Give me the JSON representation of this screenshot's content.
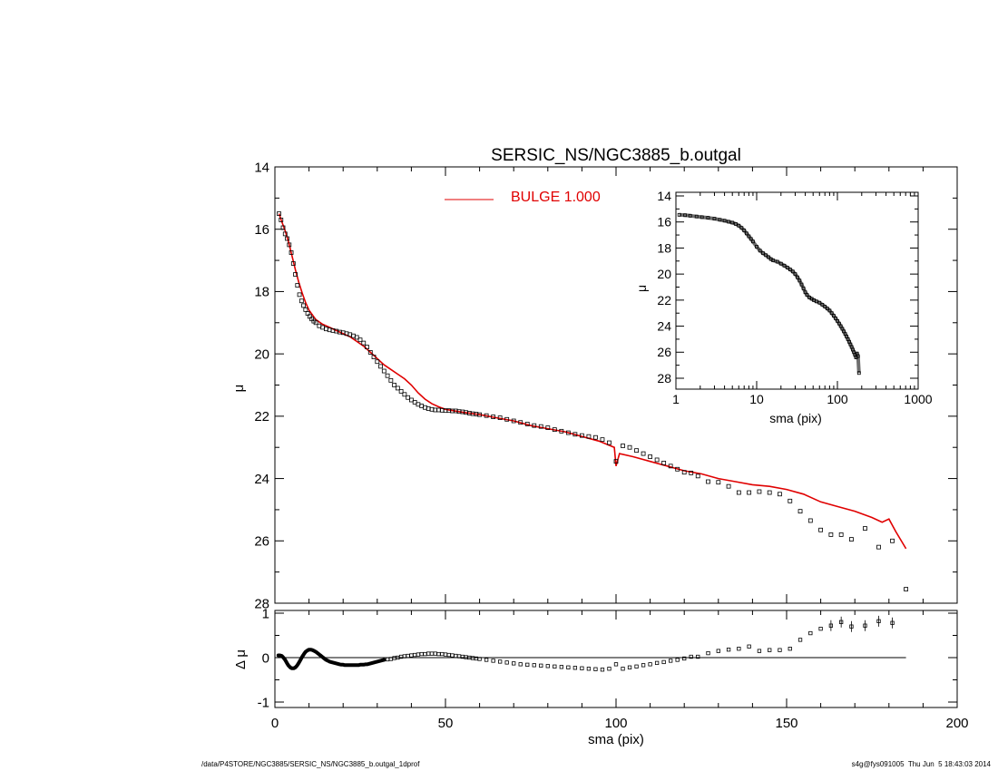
{
  "colors": {
    "model": "#e00000",
    "data": "#000000",
    "axis": "#000000"
  },
  "footer": {
    "path": "/data/P4STORE/NGC3885/SERSIC_NS/NGC3885_b.outgal_1dprof",
    "stamp": "s4g@fys091005  Thu Jun  5 18:43:03 2014"
  },
  "chart_data": [
    {
      "id": "main_profile",
      "type": "scatter",
      "title": "SERSIC_NS/NGC3885_b.outgal",
      "ylabel": "μ",
      "xlim": [
        0,
        200
      ],
      "ylim": [
        28,
        14
      ],
      "y_reversed": true,
      "xticks": [
        0,
        50,
        100,
        150,
        200
      ],
      "yticks": [
        14,
        16,
        18,
        20,
        22,
        24,
        26,
        28
      ],
      "legend": {
        "placement": "top-center",
        "entries": [
          {
            "label": "BULGE  1.000",
            "color": "#e00000"
          }
        ]
      },
      "series": [
        {
          "kind": "model_line",
          "color": "#e00000",
          "x": [
            1.2,
            2,
            3,
            4,
            5,
            6,
            7,
            8,
            9,
            10,
            12,
            14,
            16,
            18,
            20,
            22,
            24,
            26,
            28,
            30,
            32,
            34,
            36,
            38,
            40,
            42,
            44,
            46,
            48,
            50,
            55,
            60,
            65,
            70,
            75,
            80,
            85,
            90,
            95,
            99.5,
            100,
            101,
            105,
            110,
            115,
            120,
            125,
            130,
            135,
            140,
            145,
            150,
            155,
            160,
            165,
            170,
            175,
            178,
            180,
            182,
            185
          ],
          "y": [
            15.5,
            15.75,
            16.05,
            16.4,
            16.85,
            17.3,
            17.7,
            18.05,
            18.35,
            18.6,
            18.9,
            19.05,
            19.15,
            19.25,
            19.35,
            19.45,
            19.6,
            19.75,
            19.95,
            20.15,
            20.35,
            20.5,
            20.65,
            20.8,
            21.0,
            21.25,
            21.45,
            21.6,
            21.7,
            21.78,
            21.87,
            21.95,
            22.05,
            22.15,
            22.3,
            22.4,
            22.5,
            22.65,
            22.8,
            23.0,
            23.6,
            23.2,
            23.3,
            23.45,
            23.6,
            23.75,
            23.85,
            24.0,
            24.1,
            24.2,
            24.25,
            24.35,
            24.5,
            24.75,
            24.9,
            25.05,
            25.25,
            25.4,
            25.3,
            25.7,
            26.25
          ]
        },
        {
          "kind": "data_points",
          "color": "#000000",
          "x": [
            1.2,
            1.8,
            2.4,
            3,
            3.6,
            4.2,
            4.8,
            5.4,
            6,
            6.6,
            7.2,
            7.8,
            8.4,
            9,
            9.6,
            10.2,
            10.8,
            11.4,
            12,
            13,
            14,
            15,
            16,
            17,
            18,
            19,
            20,
            21,
            22,
            23,
            24,
            25,
            26,
            27,
            28,
            29,
            30,
            31,
            32,
            33,
            34,
            35,
            36,
            37,
            38,
            39,
            40,
            41,
            42,
            43,
            44,
            45,
            46,
            47,
            48,
            49,
            50,
            51,
            52,
            53,
            54,
            55,
            56,
            57,
            58,
            59,
            60,
            62,
            64,
            66,
            68,
            70,
            72,
            74,
            76,
            78,
            80,
            82,
            84,
            86,
            88,
            90,
            92,
            94,
            96,
            98,
            100,
            102,
            104,
            106,
            108,
            110,
            112,
            114,
            116,
            118,
            120,
            122,
            124,
            127,
            130,
            133,
            136,
            139,
            142,
            145,
            148,
            151,
            154,
            157,
            160,
            163,
            166,
            169,
            173,
            177,
            181,
            185
          ],
          "y": [
            15.5,
            15.7,
            15.95,
            16.15,
            16.3,
            16.5,
            16.75,
            17.1,
            17.45,
            17.8,
            18.1,
            18.3,
            18.45,
            18.58,
            18.7,
            18.8,
            18.88,
            18.95,
            19.0,
            19.1,
            19.15,
            19.2,
            19.23,
            19.25,
            19.27,
            19.3,
            19.32,
            19.35,
            19.38,
            19.42,
            19.47,
            19.55,
            19.65,
            19.78,
            19.95,
            20.1,
            20.25,
            20.4,
            20.55,
            20.7,
            20.85,
            21.0,
            21.1,
            21.2,
            21.3,
            21.4,
            21.48,
            21.55,
            21.62,
            21.67,
            21.72,
            21.76,
            21.78,
            21.8,
            21.8,
            21.81,
            21.82,
            21.82,
            21.83,
            21.83,
            21.85,
            21.86,
            21.88,
            21.9,
            21.92,
            21.93,
            21.95,
            21.98,
            22.02,
            22.05,
            22.1,
            22.15,
            22.2,
            22.25,
            22.3,
            22.33,
            22.37,
            22.43,
            22.48,
            22.53,
            22.58,
            22.62,
            22.65,
            22.68,
            22.75,
            22.85,
            23.45,
            22.95,
            23.0,
            23.1,
            23.2,
            23.3,
            23.4,
            23.5,
            23.6,
            23.7,
            23.8,
            23.82,
            23.92,
            24.1,
            24.12,
            24.25,
            24.45,
            24.45,
            24.42,
            24.45,
            24.5,
            24.72,
            25.05,
            25.35,
            25.65,
            25.8,
            25.8,
            25.95,
            25.6,
            26.2,
            26.0,
            27.55
          ]
        }
      ]
    },
    {
      "id": "residuals",
      "type": "scatter",
      "xlabel": "sma (pix)",
      "ylabel": "Δ μ",
      "xlim": [
        0,
        200
      ],
      "ylim": [
        -1,
        1
      ],
      "xticks": [
        0,
        50,
        100,
        150,
        200
      ],
      "yticks": [
        -1,
        0,
        1
      ],
      "reference_line": {
        "y": 0,
        "x_range": [
          0,
          185
        ]
      },
      "series": [
        {
          "kind": "dense_curve",
          "color": "#000000",
          "x": [
            1,
            1.5,
            2,
            2.5,
            3,
            3.5,
            4,
            4.5,
            5,
            5.5,
            6,
            6.5,
            7,
            7.5,
            8,
            8.5,
            9,
            9.5,
            10,
            10.5,
            11,
            11.5,
            12,
            12.5,
            13,
            13.5,
            14,
            14.5,
            15,
            15.5,
            16,
            16.5,
            17,
            17.5,
            18,
            18.5,
            19,
            19.5,
            20,
            20.5,
            21,
            21.5,
            22,
            22.5,
            23,
            23.5,
            24,
            24.5,
            25,
            25.5,
            26,
            26.5,
            27,
            27.5,
            28,
            28.5,
            29,
            29.5,
            30,
            30.5,
            31,
            31.5,
            32
          ],
          "y": [
            0.05,
            0.05,
            0.04,
            0.0,
            -0.05,
            -0.12,
            -0.18,
            -0.22,
            -0.24,
            -0.24,
            -0.22,
            -0.18,
            -0.12,
            -0.05,
            0.02,
            0.08,
            0.13,
            0.16,
            0.18,
            0.18,
            0.17,
            0.15,
            0.13,
            0.1,
            0.07,
            0.04,
            0.01,
            -0.02,
            -0.05,
            -0.07,
            -0.09,
            -0.1,
            -0.11,
            -0.12,
            -0.13,
            -0.14,
            -0.15,
            -0.16,
            -0.16,
            -0.17,
            -0.17,
            -0.17,
            -0.17,
            -0.17,
            -0.17,
            -0.17,
            -0.17,
            -0.17,
            -0.16,
            -0.16,
            -0.16,
            -0.15,
            -0.15,
            -0.14,
            -0.13,
            -0.12,
            -0.11,
            -0.1,
            -0.09,
            -0.08,
            -0.07,
            -0.06,
            -0.05
          ]
        },
        {
          "kind": "data_points",
          "color": "#000000",
          "x": [
            33,
            34,
            35,
            36,
            37,
            38,
            39,
            40,
            41,
            42,
            43,
            44,
            45,
            46,
            47,
            48,
            49,
            50,
            51,
            52,
            53,
            54,
            55,
            56,
            57,
            58,
            59,
            60,
            62,
            64,
            66,
            68,
            70,
            72,
            74,
            76,
            78,
            80,
            82,
            84,
            86,
            88,
            90,
            92,
            94,
            96,
            98,
            100,
            102,
            104,
            106,
            108,
            110,
            112,
            114,
            116,
            118,
            120,
            122,
            124,
            127,
            130,
            133,
            136,
            139,
            142,
            145,
            148,
            151,
            154,
            157,
            160,
            163,
            166,
            169,
            173,
            177,
            181
          ],
          "y": [
            -0.04,
            -0.03,
            -0.01,
            0.0,
            0.02,
            0.03,
            0.04,
            0.05,
            0.06,
            0.07,
            0.08,
            0.08,
            0.09,
            0.09,
            0.09,
            0.08,
            0.08,
            0.07,
            0.06,
            0.05,
            0.04,
            0.03,
            0.02,
            0.01,
            0.0,
            -0.01,
            -0.02,
            -0.03,
            -0.05,
            -0.07,
            -0.09,
            -0.11,
            -0.13,
            -0.15,
            -0.16,
            -0.17,
            -0.18,
            -0.19,
            -0.2,
            -0.21,
            -0.22,
            -0.23,
            -0.24,
            -0.25,
            -0.26,
            -0.27,
            -0.25,
            -0.15,
            -0.25,
            -0.22,
            -0.2,
            -0.17,
            -0.15,
            -0.12,
            -0.1,
            -0.07,
            -0.05,
            -0.02,
            0.02,
            0.02,
            0.1,
            0.15,
            0.18,
            0.2,
            0.25,
            0.15,
            0.17,
            0.17,
            0.2,
            0.4,
            0.55,
            0.65,
            0.72,
            0.8,
            0.7,
            0.72,
            0.82,
            0.78
          ]
        }
      ]
    },
    {
      "id": "inset_log_profile",
      "type": "scatter",
      "xlabel": "sma (pix)",
      "ylabel": "μ",
      "x_scale": "log",
      "xlim": [
        1,
        1000
      ],
      "ylim": [
        28,
        14
      ],
      "y_reversed": true,
      "xticks": [
        1,
        10,
        100,
        1000
      ],
      "yticks": [
        14,
        16,
        18,
        20,
        22,
        24,
        26,
        28
      ],
      "series": [
        {
          "kind": "data_points",
          "color": "#000000",
          "x": [
            1.1,
            1.3,
            1.5,
            1.8,
            2.1,
            2.5,
            3,
            3.5,
            4,
            4.5,
            5,
            5.5,
            6,
            6.5,
            7,
            7.5,
            8,
            8.5,
            9,
            10,
            11,
            12,
            13,
            14,
            15,
            16,
            18,
            20,
            22,
            24,
            26,
            28,
            30,
            32,
            34,
            36,
            38,
            40,
            42,
            45,
            48,
            51,
            55,
            60,
            65,
            70,
            75,
            80,
            85,
            90,
            95,
            100,
            105,
            110,
            115,
            120,
            125,
            130,
            135,
            140,
            145,
            150,
            155,
            160,
            165,
            170,
            175,
            180,
            185
          ],
          "y": [
            15.45,
            15.48,
            15.52,
            15.58,
            15.63,
            15.68,
            15.75,
            15.83,
            15.9,
            15.98,
            16.05,
            16.15,
            16.28,
            16.45,
            16.65,
            16.88,
            17.1,
            17.3,
            17.5,
            17.9,
            18.2,
            18.4,
            18.55,
            18.7,
            18.85,
            18.95,
            19.05,
            19.2,
            19.35,
            19.5,
            19.65,
            19.8,
            20.0,
            20.25,
            20.5,
            20.8,
            21.1,
            21.4,
            21.6,
            21.8,
            21.9,
            22.0,
            22.1,
            22.2,
            22.35,
            22.5,
            22.65,
            22.8,
            23.0,
            23.2,
            23.4,
            23.6,
            23.8,
            24.0,
            24.2,
            24.4,
            24.6,
            24.8,
            25.0,
            25.2,
            25.4,
            25.6,
            25.8,
            26.0,
            26.2,
            26.4,
            26.1,
            26.3,
            27.6
          ]
        }
      ]
    }
  ]
}
